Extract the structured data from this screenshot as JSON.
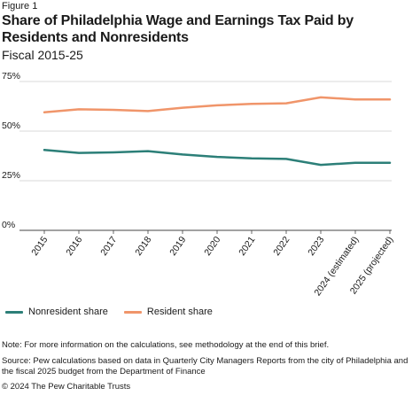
{
  "figure_label": "Figure 1",
  "note": "Note: For more information on the calculations, see methodology at the end of this brief.",
  "source": "Source: Pew calculations based on data in Quarterly City Managers Reports from the city of Philadelphia and the fiscal 2025 budget from the Department of Finance",
  "copyright": "© 2024 The Pew Charitable Trusts",
  "colors": {
    "nonresident": "#2c7f78",
    "resident": "#f0956a",
    "grid": "#cccccc",
    "axis": "#444444"
  },
  "chart_data": {
    "type": "line",
    "title": "Share of Philadelphia Wage and Earnings Tax Paid by Residents and Nonresidents",
    "subtitle": "Fiscal 2015-25",
    "xlabel": "",
    "ylabel": "",
    "categories": [
      "2015",
      "2016",
      "2017",
      "2018",
      "2019",
      "2020",
      "2021",
      "2022",
      "2023",
      "2024 (estimated)",
      "2025 (projected)"
    ],
    "ylim": [
      0,
      75
    ],
    "yticks": [
      0,
      25,
      50,
      75
    ],
    "ytick_labels": [
      "0%",
      "25%",
      "50%",
      "75%"
    ],
    "grid": true,
    "legend_position": "bottom-left",
    "series": [
      {
        "name": "Nonresident share",
        "color": "#2c7f78",
        "values": [
          40.5,
          39.0,
          39.3,
          39.9,
          38.2,
          37.0,
          36.3,
          36.0,
          33.0,
          34.0,
          34.0
        ]
      },
      {
        "name": "Resident share",
        "color": "#f0956a",
        "values": [
          59.5,
          61.0,
          60.7,
          60.1,
          61.8,
          63.0,
          63.7,
          64.0,
          67.0,
          66.0,
          66.0
        ]
      }
    ]
  }
}
